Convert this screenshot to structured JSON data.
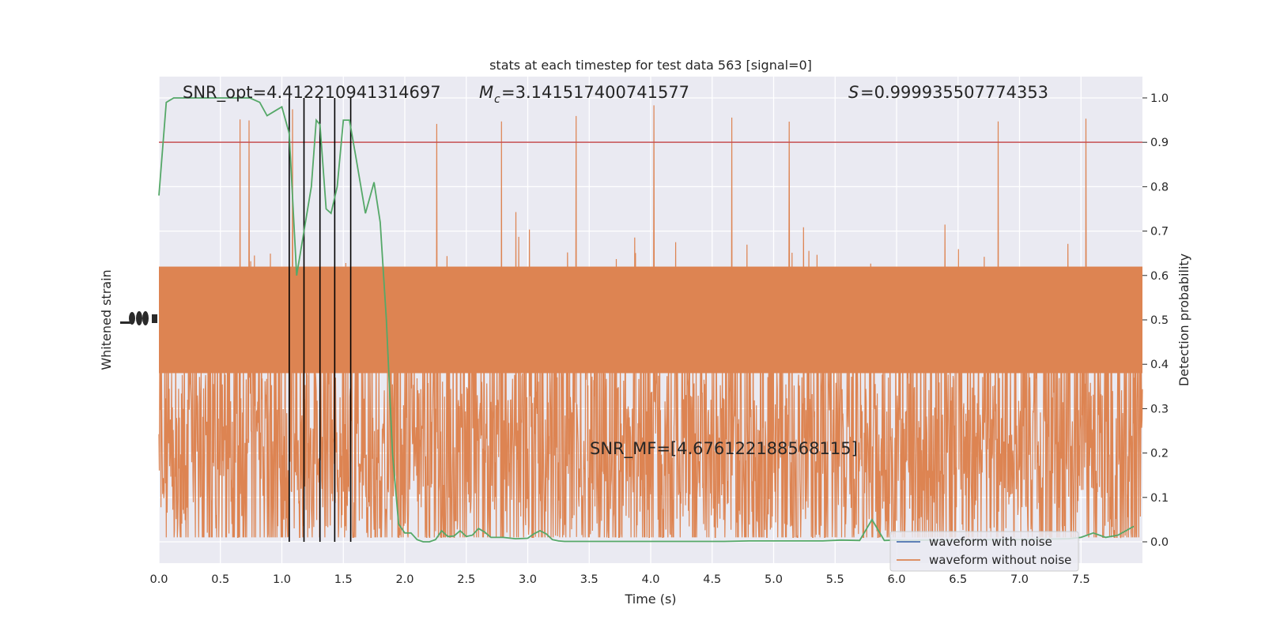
{
  "chart_data": {
    "type": "line",
    "title": "stats at each timestep for test data 563 [signal=0]",
    "xlabel": "Time (s)",
    "ylabel_left": "Whitened strain",
    "ylabel_right": "Detection probability",
    "xlim": [
      0,
      8
    ],
    "ylim_right": [
      -0.048,
      1.048
    ],
    "grid": true,
    "legend_placement": "lower-right",
    "x_ticks": [
      "0.0",
      "0.5",
      "1.0",
      "1.5",
      "2.0",
      "2.5",
      "3.0",
      "3.5",
      "4.0",
      "4.5",
      "5.0",
      "5.5",
      "6.0",
      "6.5",
      "7.0",
      "7.5"
    ],
    "y_ticks_right": [
      "0.0",
      "0.1",
      "0.2",
      "0.3",
      "0.4",
      "0.5",
      "0.6",
      "0.7",
      "0.8",
      "0.9",
      "1.0"
    ],
    "annotations": {
      "snr_opt": "SNR_opt=4.412210941314697",
      "mc_symbol": "M",
      "mc_sub": "c",
      "mc_value": "=3.141517400741577",
      "s_symbol": "S",
      "s_value": "=0.999935507774353",
      "snr_mf": "SNR_MF=[4.676122188568115]"
    },
    "threshold": 0.9,
    "vertical_lines_x": [
      1.06,
      1.18,
      1.31,
      1.43,
      1.56
    ],
    "series": [
      {
        "name": "waveform with noise",
        "color": "#4c72b0",
        "values": []
      },
      {
        "name": "waveform without noise",
        "color": "#dd8452",
        "typical_range": [
          -0.28,
          0.72
        ],
        "peak_range": [
          0.01,
          0.99
        ]
      },
      {
        "color": "#55a868",
        "x": [
          0.0,
          0.06,
          0.12,
          0.18,
          0.26,
          0.34,
          0.42,
          0.5,
          0.58,
          0.66,
          0.74,
          0.82,
          0.88,
          0.94,
          1.0,
          1.06,
          1.12,
          1.18,
          1.24,
          1.28,
          1.31,
          1.36,
          1.4,
          1.45,
          1.5,
          1.55,
          1.6,
          1.68,
          1.75,
          1.8,
          1.85,
          1.9,
          1.95,
          2.0,
          2.05,
          2.1,
          2.15,
          2.2,
          2.25,
          2.3,
          2.35,
          2.4,
          2.45,
          2.5,
          2.55,
          2.6,
          2.65,
          2.7,
          2.8,
          2.9,
          3.0,
          3.05,
          3.1,
          3.15,
          3.2,
          3.25,
          3.3,
          3.4,
          3.5,
          3.6,
          3.8,
          4.0,
          4.2,
          4.4,
          4.6,
          4.8,
          5.0,
          5.2,
          5.4,
          5.55,
          5.7,
          5.8,
          5.9,
          6.0,
          6.1,
          6.2,
          6.4,
          6.6,
          6.8,
          7.0,
          7.2,
          7.4,
          7.5,
          7.6,
          7.7,
          7.8,
          7.93
        ],
        "values": [
          0.78,
          0.99,
          1.0,
          1.0,
          1.0,
          1.0,
          1.0,
          1.0,
          1.0,
          1.0,
          1.0,
          0.99,
          0.96,
          0.97,
          0.98,
          0.92,
          0.6,
          0.7,
          0.8,
          0.95,
          0.94,
          0.75,
          0.74,
          0.8,
          0.95,
          0.95,
          0.87,
          0.74,
          0.81,
          0.72,
          0.5,
          0.2,
          0.04,
          0.02,
          0.02,
          0.005,
          0.0,
          0.0,
          0.005,
          0.025,
          0.012,
          0.013,
          0.025,
          0.012,
          0.015,
          0.03,
          0.022,
          0.01,
          0.01,
          0.007,
          0.008,
          0.018,
          0.025,
          0.018,
          0.005,
          0.002,
          0.001,
          0.001,
          0.001,
          0.001,
          0.001,
          0.001,
          0.001,
          0.001,
          0.001,
          0.002,
          0.002,
          0.002,
          0.002,
          0.004,
          0.003,
          0.05,
          0.003,
          0.004,
          0.003,
          0.004,
          0.004,
          0.004,
          0.005,
          0.005,
          0.006,
          0.007,
          0.01,
          0.02,
          0.01,
          0.015,
          0.035
        ]
      }
    ]
  }
}
